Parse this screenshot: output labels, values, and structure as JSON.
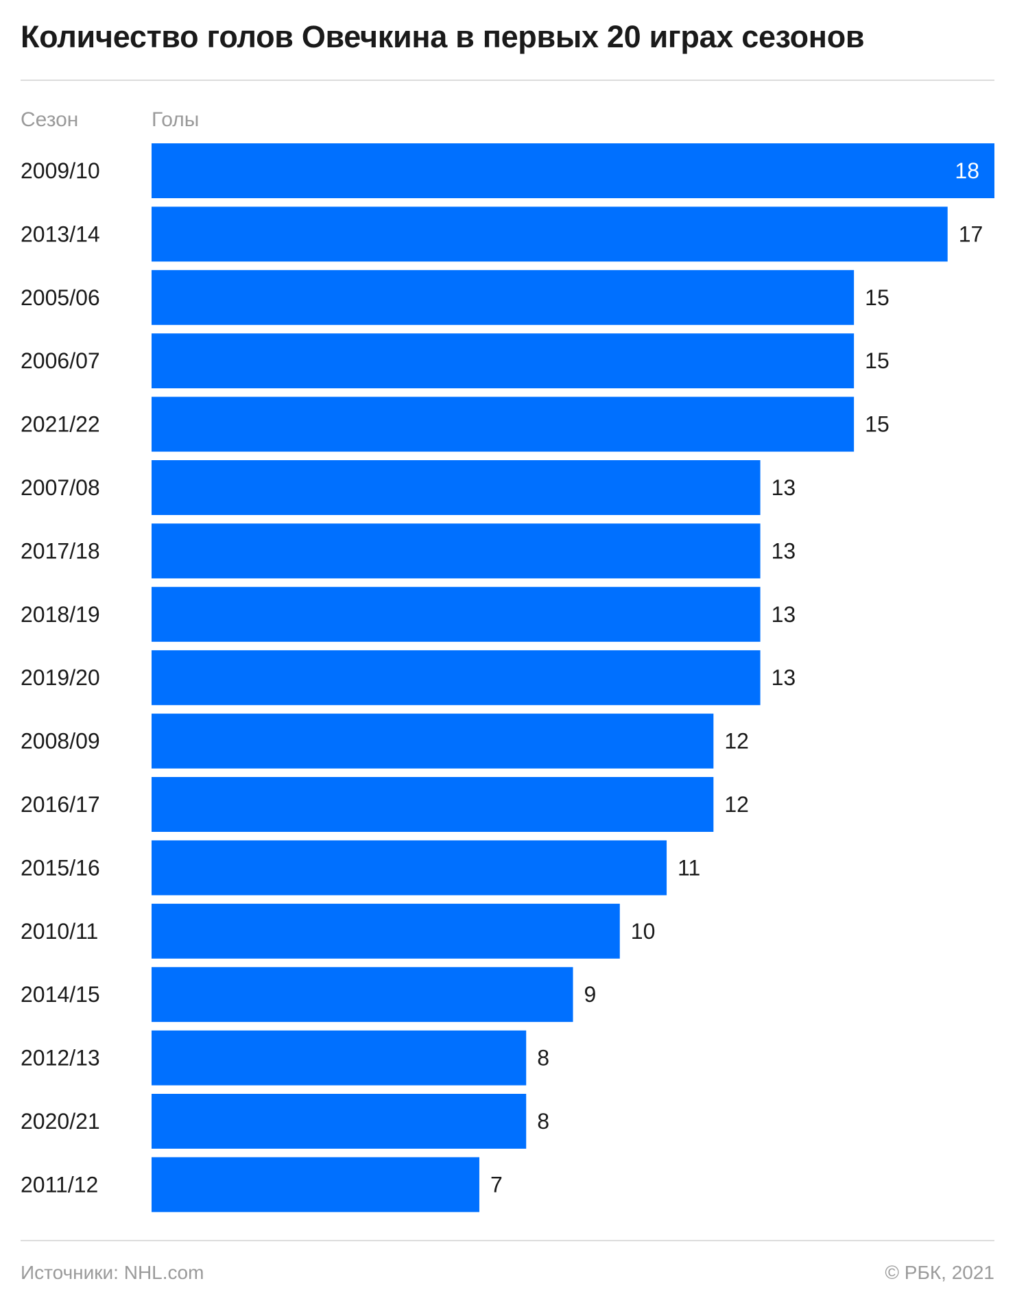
{
  "title": "Количество голов Овечкина в первых 20 играх сезонов",
  "headers": {
    "season": "Сезон",
    "goals": "Голы"
  },
  "footer": {
    "source": "Источники: NHL.com",
    "copyright": "© РБК, 2021"
  },
  "colors": {
    "bar": "#0070ff",
    "label_inside": "#ffffff",
    "label_outside": "#1a1a1a"
  },
  "chart_data": {
    "type": "bar",
    "orientation": "horizontal",
    "categories": [
      "2009/10",
      "2013/14",
      "2005/06",
      "2006/07",
      "2021/22",
      "2007/08",
      "2017/18",
      "2018/19",
      "2019/20",
      "2008/09",
      "2016/17",
      "2015/16",
      "2010/11",
      "2014/15",
      "2012/13",
      "2020/21",
      "2011/12"
    ],
    "values": [
      18,
      17,
      15,
      15,
      15,
      13,
      13,
      13,
      13,
      12,
      12,
      11,
      10,
      9,
      8,
      8,
      7
    ],
    "xlim": [
      0,
      18
    ],
    "grid": false,
    "legend": "none"
  }
}
